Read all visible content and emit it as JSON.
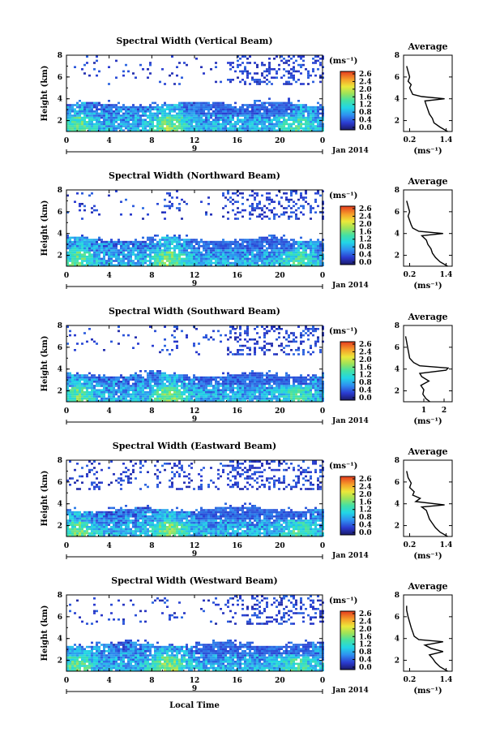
{
  "chart_data": [
    {
      "type": "heatmap",
      "title": "Spectral Width (Vertical Beam)",
      "ylabel": "Height (km)",
      "x_ticks": [
        "0",
        "4",
        "8",
        "12",
        "16",
        "20",
        "0"
      ],
      "x_date_label": "9",
      "date_label": "Jan 2014",
      "y_ticks": [
        "2",
        "4",
        "6",
        "8"
      ],
      "ylim": [
        1,
        8
      ],
      "xlim": [
        0,
        24
      ],
      "colorbar": {
        "unit": "(ms⁻¹)",
        "ticks": [
          "2.6",
          "2.4",
          "2.0",
          "1.6",
          "1.2",
          "0.8",
          "0.4",
          "0.0"
        ],
        "range": [
          0,
          2.8
        ]
      },
      "profile": {
        "title": "Average",
        "xlabel": "(ms⁻¹)",
        "x_ticks": [
          "0.2",
          "1.4"
        ],
        "x_tick_values": [
          0.2,
          1.4
        ],
        "xlim": [
          0.0,
          1.6
        ],
        "y_ticks": [
          "2",
          "4",
          "6",
          "8"
        ],
        "ylim": [
          1,
          8
        ],
        "points": [
          [
            1.45,
            1.0
          ],
          [
            1.2,
            1.4
          ],
          [
            1.0,
            1.8
          ],
          [
            0.95,
            2.2
          ],
          [
            0.85,
            2.6
          ],
          [
            0.8,
            3.0
          ],
          [
            0.75,
            3.4
          ],
          [
            0.7,
            3.8
          ],
          [
            1.35,
            4.0
          ],
          [
            0.6,
            4.2
          ],
          [
            0.3,
            4.4
          ],
          [
            0.25,
            4.7
          ],
          [
            0.2,
            5.0
          ],
          [
            0.25,
            5.3
          ],
          [
            0.15,
            5.6
          ],
          [
            0.2,
            6.0
          ],
          [
            0.15,
            6.5
          ],
          [
            0.1,
            7.0
          ]
        ]
      }
    },
    {
      "type": "heatmap",
      "title": "Spectral Width (Northward Beam)",
      "ylabel": "Height (km)",
      "x_ticks": [
        "0",
        "4",
        "8",
        "12",
        "16",
        "20",
        "0"
      ],
      "x_date_label": "9",
      "date_label": "Jan 2014",
      "y_ticks": [
        "2",
        "4",
        "6",
        "8"
      ],
      "ylim": [
        1,
        8
      ],
      "xlim": [
        0,
        24
      ],
      "colorbar": {
        "unit": "(ms⁻¹)",
        "ticks": [
          "2.6",
          "2.4",
          "2.0",
          "1.6",
          "1.2",
          "0.8",
          "0.4",
          "0.0"
        ],
        "range": [
          0,
          2.8
        ]
      },
      "profile": {
        "title": "Average",
        "xlabel": "(ms⁻¹)",
        "x_ticks": [
          "0.2",
          "1.4"
        ],
        "x_tick_values": [
          0.2,
          1.4
        ],
        "xlim": [
          0.0,
          1.6
        ],
        "y_ticks": [
          "2",
          "4",
          "6",
          "8"
        ],
        "ylim": [
          1,
          8
        ],
        "points": [
          [
            1.45,
            1.0
          ],
          [
            1.2,
            1.4
          ],
          [
            1.05,
            1.8
          ],
          [
            0.95,
            2.2
          ],
          [
            0.9,
            2.6
          ],
          [
            0.8,
            3.0
          ],
          [
            0.75,
            3.4
          ],
          [
            0.6,
            3.8
          ],
          [
            1.3,
            4.0
          ],
          [
            0.5,
            4.2
          ],
          [
            0.3,
            4.5
          ],
          [
            0.25,
            4.8
          ],
          [
            0.2,
            5.2
          ],
          [
            0.15,
            5.6
          ],
          [
            0.2,
            6.0
          ],
          [
            0.15,
            6.5
          ],
          [
            0.1,
            7.0
          ]
        ]
      }
    },
    {
      "type": "heatmap",
      "title": "Spectral Width (Southward Beam)",
      "ylabel": "Height (km)",
      "x_ticks": [
        "0",
        "4",
        "8",
        "12",
        "16",
        "20",
        "0"
      ],
      "x_date_label": "9",
      "date_label": "Jan 2014",
      "y_ticks": [
        "2",
        "4",
        "6",
        "8"
      ],
      "ylim": [
        1,
        8
      ],
      "xlim": [
        0,
        24
      ],
      "colorbar": {
        "unit": "(ms⁻¹)",
        "ticks": [
          "2.6",
          "2.4",
          "2.0",
          "1.6",
          "1.2",
          "0.8",
          "0.4",
          "0.0"
        ],
        "range": [
          0,
          2.8
        ]
      },
      "profile": {
        "title": "Average",
        "xlabel": "(ms⁻¹)",
        "x_ticks": [
          "1",
          "2"
        ],
        "x_tick_values": [
          1,
          2
        ],
        "xlim": [
          0.0,
          2.4
        ],
        "y_ticks": [
          "2",
          "4",
          "6",
          "8"
        ],
        "ylim": [
          1,
          8
        ],
        "points": [
          [
            1.3,
            1.0
          ],
          [
            1.1,
            1.3
          ],
          [
            0.95,
            1.7
          ],
          [
            1.0,
            2.1
          ],
          [
            0.85,
            2.5
          ],
          [
            1.25,
            2.9
          ],
          [
            0.9,
            3.3
          ],
          [
            0.8,
            3.6
          ],
          [
            2.1,
            3.9
          ],
          [
            2.2,
            4.1
          ],
          [
            0.8,
            4.3
          ],
          [
            0.5,
            4.6
          ],
          [
            0.3,
            5.0
          ],
          [
            0.25,
            5.5
          ],
          [
            0.2,
            6.0
          ],
          [
            0.15,
            6.5
          ],
          [
            0.1,
            7.0
          ]
        ]
      }
    },
    {
      "type": "heatmap",
      "title": "Spectral Width (Eastward Beam)",
      "ylabel": "Height (km)",
      "x_ticks": [
        "0",
        "4",
        "8",
        "12",
        "16",
        "20",
        "0"
      ],
      "x_date_label": "9",
      "date_label": "Jan 2014",
      "y_ticks": [
        "2",
        "4",
        "6",
        "8"
      ],
      "ylim": [
        1,
        8
      ],
      "xlim": [
        0,
        24
      ],
      "colorbar": {
        "unit": "(ms⁻¹)",
        "ticks": [
          "2.6",
          "2.4",
          "2.0",
          "1.6",
          "1.2",
          "0.8",
          "0.4",
          "0.0"
        ],
        "range": [
          0,
          2.8
        ]
      },
      "profile": {
        "title": "Average",
        "xlabel": "(ms⁻¹)",
        "x_ticks": [
          "0.2",
          "1.4"
        ],
        "x_tick_values": [
          0.2,
          1.4
        ],
        "xlim": [
          0.0,
          1.6
        ],
        "y_ticks": [
          "2",
          "4",
          "6",
          "8"
        ],
        "ylim": [
          1,
          8
        ],
        "points": [
          [
            1.45,
            1.0
          ],
          [
            1.2,
            1.4
          ],
          [
            1.05,
            1.8
          ],
          [
            0.95,
            2.2
          ],
          [
            0.85,
            2.6
          ],
          [
            0.8,
            3.0
          ],
          [
            0.75,
            3.4
          ],
          [
            0.6,
            3.7
          ],
          [
            1.35,
            3.9
          ],
          [
            0.4,
            4.2
          ],
          [
            0.55,
            4.5
          ],
          [
            0.3,
            4.8
          ],
          [
            0.35,
            5.1
          ],
          [
            0.2,
            5.5
          ],
          [
            0.25,
            5.9
          ],
          [
            0.15,
            6.4
          ],
          [
            0.1,
            7.0
          ]
        ]
      }
    },
    {
      "type": "heatmap",
      "title": "Spectral Width (Westward Beam)",
      "ylabel": "Height (km)",
      "x_ticks": [
        "0",
        "4",
        "8",
        "12",
        "16",
        "20",
        "0"
      ],
      "x_date_label": "9",
      "date_label": "Jan 2014",
      "xlabel": "Local Time",
      "y_ticks": [
        "2",
        "4",
        "6",
        "8"
      ],
      "ylim": [
        1,
        8
      ],
      "xlim": [
        0,
        24
      ],
      "colorbar": {
        "unit": "(ms⁻¹)",
        "ticks": [
          "2.6",
          "2.4",
          "2.0",
          "1.6",
          "1.2",
          "0.8",
          "0.4",
          "0.0"
        ],
        "range": [
          0,
          2.8
        ]
      },
      "profile": {
        "title": "Average",
        "xlabel": "(ms⁻¹)",
        "x_ticks": [
          "0.2",
          "1.4"
        ],
        "x_tick_values": [
          0.2,
          1.4
        ],
        "xlim": [
          0.0,
          1.6
        ],
        "y_ticks": [
          "2",
          "4",
          "6",
          "8"
        ],
        "ylim": [
          1,
          8
        ],
        "points": [
          [
            1.45,
            1.0
          ],
          [
            1.2,
            1.4
          ],
          [
            1.05,
            1.8
          ],
          [
            0.95,
            2.2
          ],
          [
            0.85,
            2.5
          ],
          [
            1.3,
            2.8
          ],
          [
            0.9,
            3.1
          ],
          [
            0.7,
            3.4
          ],
          [
            1.3,
            3.7
          ],
          [
            0.5,
            3.9
          ],
          [
            0.35,
            4.2
          ],
          [
            0.3,
            4.6
          ],
          [
            0.25,
            5.0
          ],
          [
            0.2,
            5.5
          ],
          [
            0.15,
            6.0
          ],
          [
            0.1,
            6.6
          ],
          [
            0.1,
            7.0
          ]
        ]
      }
    }
  ]
}
